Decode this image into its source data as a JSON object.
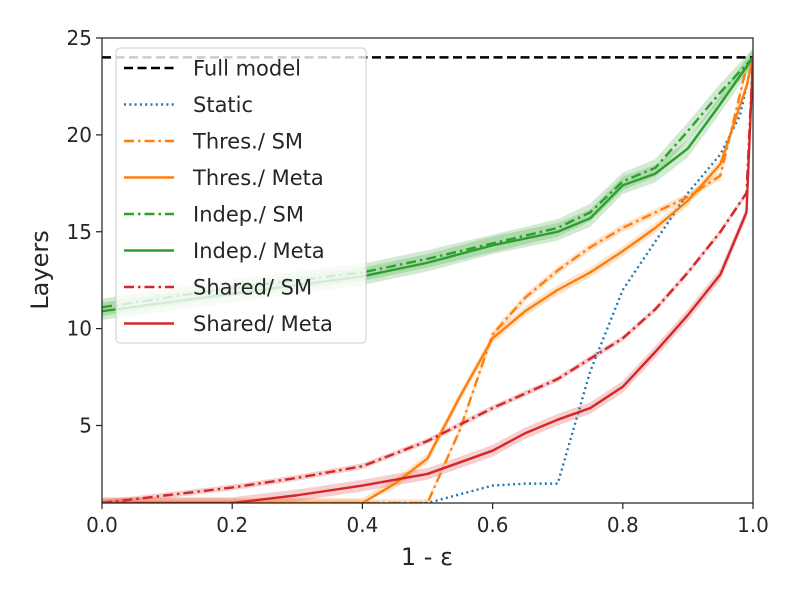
{
  "chart_data": {
    "type": "line",
    "title": "",
    "xlabel": "1 - ε",
    "ylabel": "Layers",
    "xlim": [
      0.0,
      1.0
    ],
    "ylim": [
      1,
      25
    ],
    "xticks": [
      0.0,
      0.2,
      0.4,
      0.6,
      0.8,
      1.0
    ],
    "xtick_labels": [
      "0.0",
      "0.2",
      "0.4",
      "0.6",
      "0.8",
      "1.0"
    ],
    "yticks": [
      5,
      10,
      15,
      20,
      25
    ],
    "ytick_labels": [
      "5",
      "10",
      "15",
      "20",
      "25"
    ],
    "grid": false,
    "legend_position": "upper-left",
    "series": [
      {
        "name": "Full model",
        "color": "#000000",
        "style": "dashed",
        "x": [
          0.0,
          1.0
        ],
        "y": [
          24,
          24
        ]
      },
      {
        "name": "Static",
        "color": "#1f77b4",
        "style": "dotted",
        "x": [
          0.0,
          0.4,
          0.5,
          0.6,
          0.65,
          0.7,
          0.75,
          0.8,
          0.85,
          0.9,
          0.95,
          0.98,
          1.0
        ],
        "y": [
          1.0,
          1.0,
          1.0,
          1.9,
          2.0,
          2.0,
          7.8,
          12.0,
          14.5,
          17.0,
          19.0,
          21.0,
          24.0
        ]
      },
      {
        "name": "Thres./ SM",
        "color": "#ff7f0e",
        "style": "dashdot",
        "x": [
          0.0,
          0.5,
          0.55,
          0.6,
          0.65,
          0.7,
          0.75,
          0.8,
          0.85,
          0.9,
          0.95,
          0.99,
          1.0
        ],
        "y": [
          1.0,
          1.0,
          4.8,
          9.7,
          11.6,
          13.0,
          14.2,
          15.2,
          16.0,
          16.8,
          17.9,
          23.5,
          24.0
        ],
        "band": 0.2
      },
      {
        "name": "Thres./ Meta",
        "color": "#ff7f0e",
        "style": "solid",
        "x": [
          0.0,
          0.4,
          0.45,
          0.5,
          0.55,
          0.6,
          0.65,
          0.7,
          0.75,
          0.8,
          0.85,
          0.9,
          0.95,
          0.99,
          1.0
        ],
        "y": [
          1.0,
          1.0,
          2.0,
          3.3,
          6.5,
          9.5,
          10.9,
          12.0,
          12.9,
          14.0,
          15.2,
          16.6,
          18.5,
          22.5,
          24.0
        ],
        "band": 0.25
      },
      {
        "name": "Indep./ SM",
        "color": "#2ca02c",
        "style": "dashdot",
        "x": [
          0.0,
          0.2,
          0.4,
          0.5,
          0.6,
          0.7,
          0.75,
          0.8,
          0.85,
          0.9,
          0.95,
          1.0
        ],
        "y": [
          11.1,
          12.1,
          12.9,
          13.6,
          14.4,
          15.2,
          16.0,
          17.6,
          18.3,
          20.2,
          22.2,
          24.0
        ],
        "band": 0.45
      },
      {
        "name": "Indep./ Meta",
        "color": "#2ca02c",
        "style": "solid",
        "x": [
          0.0,
          0.2,
          0.4,
          0.5,
          0.6,
          0.7,
          0.75,
          0.8,
          0.85,
          0.9,
          0.95,
          1.0
        ],
        "y": [
          10.9,
          11.8,
          12.7,
          13.4,
          14.3,
          15.0,
          15.7,
          17.4,
          18.0,
          19.3,
          21.6,
          24.0
        ],
        "band": 0.45
      },
      {
        "name": "Shared/ SM",
        "color": "#d62728",
        "style": "dashdot",
        "x": [
          0.0,
          0.1,
          0.2,
          0.3,
          0.4,
          0.5,
          0.6,
          0.7,
          0.8,
          0.85,
          0.9,
          0.95,
          0.99,
          1.0
        ],
        "y": [
          1.0,
          1.4,
          1.8,
          2.3,
          2.9,
          4.2,
          5.9,
          7.4,
          9.5,
          11.0,
          12.9,
          15.0,
          17.0,
          24.0
        ],
        "band": 0.15
      },
      {
        "name": "Shared/ Meta",
        "color": "#d62728",
        "style": "solid",
        "x": [
          0.0,
          0.2,
          0.3,
          0.4,
          0.5,
          0.6,
          0.65,
          0.7,
          0.75,
          0.8,
          0.85,
          0.9,
          0.95,
          0.99,
          1.0
        ],
        "y": [
          1.0,
          1.0,
          1.4,
          1.9,
          2.5,
          3.7,
          4.6,
          5.3,
          5.9,
          7.0,
          8.8,
          10.7,
          12.8,
          16.0,
          24.0
        ],
        "band": 0.3
      }
    ]
  }
}
